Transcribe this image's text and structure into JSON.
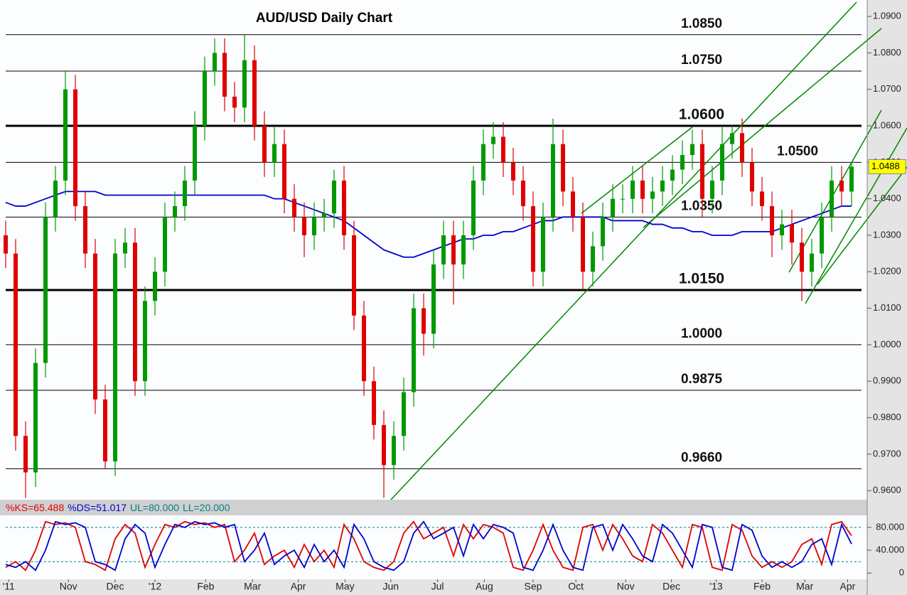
{
  "chart_data": {
    "type": "candlestick",
    "title": "AUD/USD Daily Chart",
    "ylim": [
      0.9575,
      1.0945
    ],
    "yticks": [
      {
        "value": 0.96,
        "label": "0.9600"
      },
      {
        "value": 0.97,
        "label": "0.9700"
      },
      {
        "value": 0.98,
        "label": "0.9800"
      },
      {
        "value": 0.99,
        "label": "0.9900"
      },
      {
        "value": 1.0,
        "label": "1.0000"
      },
      {
        "value": 1.01,
        "label": "1.0100"
      },
      {
        "value": 1.02,
        "label": "1.0200"
      },
      {
        "value": 1.03,
        "label": "1.0300"
      },
      {
        "value": 1.04,
        "label": "1.0400"
      },
      {
        "value": 1.05,
        "label": "1.0500"
      },
      {
        "value": 1.06,
        "label": "1.0600"
      },
      {
        "value": 1.07,
        "label": "1.0700"
      },
      {
        "value": 1.08,
        "label": "1.0800"
      },
      {
        "value": 1.09,
        "label": "1.0900"
      }
    ],
    "xticks": [
      {
        "value": 0.3,
        "label": "'11"
      },
      {
        "value": 6.3,
        "label": "Nov"
      },
      {
        "value": 11,
        "label": "Dec"
      },
      {
        "value": 15,
        "label": "'12"
      },
      {
        "value": 20.1,
        "label": "Feb"
      },
      {
        "value": 24.8,
        "label": "Mar"
      },
      {
        "value": 29.4,
        "label": "Apr"
      },
      {
        "value": 34.1,
        "label": "May"
      },
      {
        "value": 38.7,
        "label": "Jun"
      },
      {
        "value": 43.4,
        "label": "Jul"
      },
      {
        "value": 48.1,
        "label": "Aug"
      },
      {
        "value": 53,
        "label": "Sep"
      },
      {
        "value": 57.3,
        "label": "Oct"
      },
      {
        "value": 62.3,
        "label": "Nov"
      },
      {
        "value": 66.9,
        "label": "Dec"
      },
      {
        "value": 71.4,
        "label": "'13"
      },
      {
        "value": 76,
        "label": "Feb"
      },
      {
        "value": 80.3,
        "label": "Mar"
      },
      {
        "value": 84.6,
        "label": "Apr"
      }
    ],
    "up_color": "#009900",
    "down_color": "#e00000",
    "open": [
      1.03,
      1.025,
      0.975,
      0.965,
      0.995,
      1.035,
      1.045,
      1.07,
      1.038,
      1.025,
      0.985,
      0.968,
      1.025,
      1.028,
      0.99,
      1.012,
      1.02,
      1.035,
      1.038,
      1.045,
      1.06,
      1.075,
      1.08,
      1.068,
      1.065,
      1.078,
      1.06,
      1.05,
      1.055,
      1.04,
      1.035,
      1.03,
      1.035,
      1.036,
      1.045,
      1.03,
      1.008,
      0.99,
      0.978,
      0.967,
      0.975,
      0.987,
      1.01,
      1.003,
      1.022,
      1.03,
      1.022,
      1.03,
      1.045,
      1.055,
      1.057,
      1.05,
      1.045,
      1.038,
      1.02,
      1.035,
      1.055,
      1.042,
      1.035,
      1.02,
      1.027,
      1.035,
      1.04,
      1.04,
      1.045,
      1.04,
      1.042,
      1.045,
      1.048,
      1.052,
      1.055,
      1.04,
      1.045,
      1.055,
      1.058,
      1.05,
      1.042,
      1.038,
      1.03,
      1.033,
      1.028,
      1.02,
      1.025,
      1.035,
      1.045,
      1.042
    ],
    "high": [
      1.034,
      1.029,
      0.979,
      0.999,
      1.039,
      1.049,
      1.075,
      1.074,
      1.042,
      1.029,
      0.989,
      1.029,
      1.032,
      1.032,
      1.016,
      1.024,
      1.039,
      1.042,
      1.049,
      1.064,
      1.079,
      1.084,
      1.084,
      1.072,
      1.085,
      1.082,
      1.064,
      1.06,
      1.059,
      1.044,
      1.039,
      1.039,
      1.04,
      1.048,
      1.049,
      1.034,
      1.012,
      0.994,
      0.982,
      0.979,
      0.991,
      1.014,
      1.014,
      1.026,
      1.034,
      1.034,
      1.034,
      1.049,
      1.059,
      1.061,
      1.061,
      1.054,
      1.049,
      1.042,
      1.039,
      1.062,
      1.059,
      1.046,
      1.039,
      1.031,
      1.039,
      1.044,
      1.044,
      1.049,
      1.049,
      1.046,
      1.049,
      1.052,
      1.056,
      1.059,
      1.059,
      1.049,
      1.06,
      1.06,
      1.062,
      1.054,
      1.046,
      1.042,
      1.037,
      1.037,
      1.032,
      1.029,
      1.039,
      1.049,
      1.049,
      1.05
    ],
    "low": [
      1.021,
      0.971,
      0.958,
      0.961,
      0.991,
      1.031,
      1.041,
      1.034,
      1.021,
      0.981,
      0.966,
      0.964,
      1.021,
      0.986,
      0.986,
      1.008,
      1.016,
      1.031,
      1.034,
      1.041,
      1.056,
      1.071,
      1.064,
      1.061,
      1.061,
      1.056,
      1.046,
      1.046,
      1.036,
      1.031,
      1.024,
      1.026,
      1.031,
      1.032,
      1.026,
      1.004,
      0.986,
      0.974,
      0.958,
      0.963,
      0.971,
      0.983,
      0.997,
      0.999,
      1.018,
      1.011,
      1.018,
      1.026,
      1.041,
      1.051,
      1.046,
      1.041,
      1.034,
      1.016,
      1.016,
      1.031,
      1.038,
      1.031,
      1.015,
      1.016,
      1.023,
      1.031,
      1.036,
      1.036,
      1.036,
      1.036,
      1.038,
      1.041,
      1.044,
      1.048,
      1.035,
      1.036,
      1.041,
      1.051,
      1.046,
      1.038,
      1.034,
      1.024,
      1.026,
      1.022,
      1.012,
      1.016,
      1.021,
      1.031,
      1.038,
      1.038
    ],
    "close": [
      1.025,
      0.975,
      0.965,
      0.995,
      1.035,
      1.045,
      1.07,
      1.038,
      1.025,
      0.985,
      0.968,
      1.025,
      1.028,
      0.99,
      1.012,
      1.02,
      1.035,
      1.038,
      1.045,
      1.06,
      1.075,
      1.08,
      1.068,
      1.065,
      1.078,
      1.06,
      1.05,
      1.055,
      1.04,
      1.035,
      1.03,
      1.035,
      1.036,
      1.045,
      1.03,
      1.008,
      0.99,
      0.978,
      0.967,
      0.975,
      0.987,
      1.01,
      1.003,
      1.022,
      1.03,
      1.022,
      1.03,
      1.045,
      1.055,
      1.057,
      1.05,
      1.045,
      1.038,
      1.02,
      1.035,
      1.055,
      1.042,
      1.035,
      1.02,
      1.027,
      1.035,
      1.04,
      1.04,
      1.045,
      1.04,
      1.042,
      1.045,
      1.048,
      1.052,
      1.055,
      1.04,
      1.045,
      1.055,
      1.058,
      1.05,
      1.042,
      1.038,
      1.03,
      1.033,
      1.028,
      1.02,
      1.025,
      1.035,
      1.045,
      1.042,
      1.0488
    ],
    "last_value": {
      "value": 1.0488,
      "label": "1.0488"
    },
    "moving_average": {
      "color": "#0000cc",
      "values": [
        1.039,
        1.038,
        1.038,
        1.039,
        1.04,
        1.041,
        1.042,
        1.042,
        1.042,
        1.042,
        1.041,
        1.041,
        1.041,
        1.041,
        1.041,
        1.041,
        1.041,
        1.041,
        1.041,
        1.041,
        1.041,
        1.041,
        1.041,
        1.041,
        1.041,
        1.041,
        1.041,
        1.04,
        1.04,
        1.039,
        1.038,
        1.037,
        1.036,
        1.035,
        1.034,
        1.032,
        1.03,
        1.028,
        1.026,
        1.025,
        1.024,
        1.024,
        1.025,
        1.026,
        1.027,
        1.028,
        1.029,
        1.029,
        1.03,
        1.03,
        1.031,
        1.031,
        1.032,
        1.033,
        1.034,
        1.034,
        1.035,
        1.035,
        1.035,
        1.035,
        1.035,
        1.034,
        1.034,
        1.034,
        1.034,
        1.033,
        1.033,
        1.032,
        1.032,
        1.031,
        1.031,
        1.03,
        1.03,
        1.03,
        1.031,
        1.031,
        1.031,
        1.031,
        1.032,
        1.033,
        1.034,
        1.035,
        1.036,
        1.037,
        1.038,
        1.038
      ]
    },
    "levels": [
      {
        "value": 1.085,
        "label": "1.0850",
        "width": 1
      },
      {
        "value": 1.075,
        "label": "1.0750",
        "width": 1
      },
      {
        "value": 1.06,
        "label": "1.0600",
        "width": 3
      },
      {
        "value": 1.05,
        "label": "1.0500",
        "width": 1
      },
      {
        "value": 1.035,
        "label": "1.0350",
        "width": 1
      },
      {
        "value": 1.015,
        "label": "1.0150",
        "width": 3
      },
      {
        "value": 1.0,
        "label": "1.0000",
        "width": 1
      },
      {
        "value": 0.9875,
        "label": "0.9875",
        "width": 1
      },
      {
        "value": 0.966,
        "label": "0.9660",
        "width": 1
      }
    ],
    "oscillator": {
      "ylim": [
        -11,
        101
      ],
      "yticks": [
        {
          "value": 0,
          "label": "0"
        },
        {
          "value": 40,
          "label": "40.000"
        },
        {
          "value": 80,
          "label": "80.000"
        }
      ],
      "series": [
        {
          "name": "%KS=65.488",
          "color": "#e00000",
          "values": [
            10,
            20,
            5,
            40,
            90,
            85,
            88,
            80,
            20,
            15,
            5,
            60,
            85,
            70,
            10,
            50,
            85,
            80,
            90,
            85,
            88,
            80,
            85,
            20,
            40,
            70,
            15,
            30,
            40,
            10,
            50,
            20,
            40,
            10,
            85,
            60,
            20,
            10,
            5,
            20,
            70,
            90,
            60,
            70,
            80,
            30,
            85,
            60,
            85,
            80,
            70,
            10,
            5,
            40,
            85,
            40,
            10,
            5,
            80,
            85,
            40,
            85,
            60,
            30,
            20,
            85,
            70,
            40,
            10,
            85,
            80,
            10,
            5,
            85,
            75,
            30,
            10,
            20,
            10,
            20,
            50,
            60,
            15,
            85,
            90,
            65.488
          ]
        },
        {
          "name": "%DS=51.017",
          "color": "#0000cc",
          "values": [
            15,
            10,
            20,
            5,
            40,
            90,
            85,
            88,
            80,
            20,
            15,
            5,
            60,
            85,
            70,
            10,
            50,
            85,
            80,
            90,
            85,
            88,
            80,
            85,
            20,
            40,
            70,
            15,
            30,
            40,
            10,
            50,
            20,
            40,
            10,
            85,
            60,
            20,
            10,
            5,
            20,
            70,
            90,
            60,
            70,
            80,
            30,
            85,
            60,
            85,
            80,
            70,
            10,
            5,
            40,
            85,
            40,
            10,
            5,
            80,
            85,
            40,
            85,
            60,
            30,
            20,
            85,
            70,
            40,
            10,
            85,
            80,
            10,
            5,
            85,
            75,
            30,
            10,
            20,
            10,
            20,
            50,
            60,
            15,
            85,
            51.017
          ]
        }
      ],
      "levels": [
        {
          "name": "UL=80.000",
          "value": 80,
          "color": "#008080"
        },
        {
          "name": "LL=20.000",
          "value": 20,
          "color": "#008080"
        }
      ]
    }
  }
}
